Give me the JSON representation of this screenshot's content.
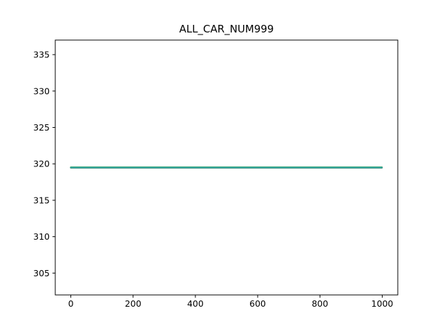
{
  "chart_data": {
    "type": "line",
    "title": "ALL_CAR_NUM999",
    "xlabel": "",
    "ylabel": "",
    "xlim": [
      -50,
      1050
    ],
    "ylim": [
      302,
      337
    ],
    "xticks": [
      0,
      200,
      400,
      600,
      800,
      1000
    ],
    "yticks": [
      305,
      310,
      315,
      320,
      325,
      330,
      335
    ],
    "grid": false,
    "legend": "none",
    "note_series": "many overlapping constant series at y≈319.5 spanning x 0..999",
    "series": [
      {
        "color": "#1f77b4",
        "x": [
          0,
          999
        ],
        "y": [
          319.45,
          319.45
        ]
      },
      {
        "color": "#ff7f0e",
        "x": [
          0,
          999
        ],
        "y": [
          319.47,
          319.47
        ]
      },
      {
        "color": "#2ca02c",
        "x": [
          0,
          999
        ],
        "y": [
          319.49,
          319.49
        ]
      },
      {
        "color": "#d62728",
        "x": [
          0,
          999
        ],
        "y": [
          319.5,
          319.5
        ]
      },
      {
        "color": "#9467bd",
        "x": [
          0,
          999
        ],
        "y": [
          319.51,
          319.51
        ]
      },
      {
        "color": "#8c564b",
        "x": [
          0,
          999
        ],
        "y": [
          319.52,
          319.52
        ]
      },
      {
        "color": "#e377c2",
        "x": [
          0,
          999
        ],
        "y": [
          319.53,
          319.53
        ]
      },
      {
        "color": "#7f7f7f",
        "x": [
          0,
          999
        ],
        "y": [
          319.54,
          319.54
        ]
      },
      {
        "color": "#bcbd22",
        "x": [
          0,
          999
        ],
        "y": [
          319.55,
          319.55
        ]
      },
      {
        "color": "#17becf",
        "x": [
          0,
          999
        ],
        "y": [
          319.5,
          319.5
        ]
      },
      {
        "color": "#2ca6a4",
        "x": [
          0,
          999
        ],
        "y": [
          319.52,
          319.52
        ]
      }
    ]
  }
}
